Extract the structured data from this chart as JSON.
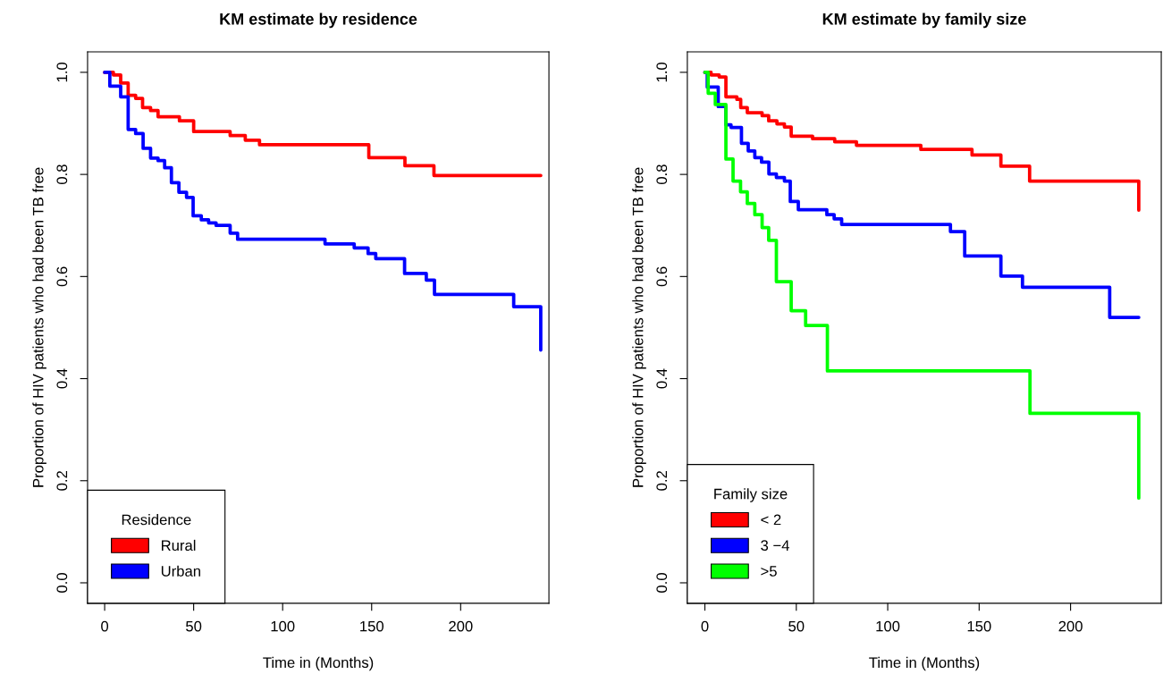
{
  "chart_data": [
    {
      "type": "step",
      "title": "KM estimate by residence",
      "xlabel": "Time in (Months)",
      "ylabel": "Proportion of HIV patients who had been TB free",
      "legend_title": "Residence",
      "legend": "bottom left",
      "grid": false,
      "xlim": [
        -9.6,
        249.6
      ],
      "ylim": [
        -0.04,
        1.04
      ],
      "xticks": [
        0,
        50,
        100,
        150,
        200
      ],
      "yticks": [
        {
          "value": 0,
          "label": "0.0"
        },
        {
          "value": 0.2,
          "label": "0.2"
        },
        {
          "value": 0.4,
          "label": "0.4"
        },
        {
          "value": 0.6,
          "label": "0.6"
        },
        {
          "value": 0.8,
          "label": "0.8"
        },
        {
          "value": 1,
          "label": "1.0"
        }
      ],
      "series": [
        {
          "name": "Rural",
          "color": "#ff0000",
          "x": [
            0,
            4.9,
            9,
            13.2,
            17.4,
            21.3,
            25.8,
            30,
            42,
            50,
            70.5,
            79,
            87,
            148.4,
            168.7,
            185,
            245
          ],
          "values": [
            1.0,
            0.995,
            0.979,
            0.955,
            0.949,
            0.931,
            0.925,
            0.913,
            0.905,
            0.884,
            0.876,
            0.867,
            0.858,
            0.833,
            0.817,
            0.798,
            0.798
          ]
        },
        {
          "name": "Urban",
          "color": "#0000ff",
          "x": [
            0,
            2.9,
            9,
            13.2,
            17.4,
            21.6,
            25.8,
            30,
            33.7,
            37.5,
            41.7,
            46,
            49.7,
            54.3,
            58.4,
            62.6,
            70.5,
            74.7,
            123.8,
            140.2,
            148,
            152.3,
            168.5,
            180.7,
            185.3,
            229.8,
            245
          ],
          "values": [
            1.0,
            0.973,
            0.952,
            0.888,
            0.88,
            0.851,
            0.832,
            0.827,
            0.813,
            0.784,
            0.765,
            0.755,
            0.719,
            0.711,
            0.705,
            0.7,
            0.685,
            0.673,
            0.664,
            0.656,
            0.645,
            0.635,
            0.606,
            0.593,
            0.565,
            0.541,
            0.456
          ]
        }
      ]
    },
    {
      "type": "step",
      "title": "KM estimate by family size",
      "xlabel": "Time in (Months)",
      "ylabel": "Proportion of HIV patients who had been TB free",
      "legend_title": "Family size",
      "legend": "bottom left",
      "grid": false,
      "xlim": [
        -9.6,
        249.6
      ],
      "ylim": [
        -0.04,
        1.04
      ],
      "xticks": [
        0,
        50,
        100,
        150,
        200
      ],
      "yticks": [
        {
          "value": 0,
          "label": "0.0"
        },
        {
          "value": 0.2,
          "label": "0.2"
        },
        {
          "value": 0.4,
          "label": "0.4"
        },
        {
          "value": 0.6,
          "label": "0.6"
        },
        {
          "value": 0.8,
          "label": "0.8"
        },
        {
          "value": 1,
          "label": "1.0"
        }
      ],
      "series": [
        {
          "name": "< 2",
          "color": "#ff0000",
          "x": [
            0,
            3.4,
            7.8,
            11.5,
            17.5,
            19.6,
            23.2,
            31.3,
            34.9,
            39.4,
            43.5,
            47.2,
            58.9,
            71,
            82.9,
            118.1,
            146.1,
            161.9,
            177.6,
            237.3
          ],
          "values": [
            1.0,
            0.995,
            0.991,
            0.952,
            0.947,
            0.931,
            0.921,
            0.915,
            0.905,
            0.899,
            0.893,
            0.875,
            0.87,
            0.864,
            0.857,
            0.849,
            0.838,
            0.816,
            0.787,
            0.73
          ]
        },
        {
          "name": "3 −4",
          "color": "#0000ff",
          "x": [
            0,
            1.3,
            7.3,
            11.5,
            14.3,
            20,
            23.7,
            27.3,
            31,
            35,
            39.1,
            43.5,
            46.7,
            51.1,
            66.7,
            70.7,
            74.8,
            134.3,
            142.1,
            161.9,
            173.7,
            221.4,
            237.3
          ],
          "values": [
            1.0,
            0.971,
            0.933,
            0.897,
            0.892,
            0.861,
            0.846,
            0.833,
            0.824,
            0.801,
            0.794,
            0.787,
            0.747,
            0.731,
            0.721,
            0.713,
            0.702,
            0.688,
            0.64,
            0.601,
            0.579,
            0.52,
            0.52
          ]
        },
        {
          "name": ">5",
          "color": "#00ff00",
          "x": [
            0,
            1.8,
            5.7,
            11.5,
            15.4,
            19.5,
            23.2,
            27.3,
            31.3,
            34.9,
            39.1,
            47.2,
            55.1,
            67,
            177.8,
            237.3
          ],
          "values": [
            1.0,
            0.959,
            0.937,
            0.83,
            0.787,
            0.766,
            0.743,
            0.721,
            0.696,
            0.671,
            0.59,
            0.533,
            0.504,
            0.415,
            0.332,
            0.166
          ]
        }
      ]
    }
  ]
}
